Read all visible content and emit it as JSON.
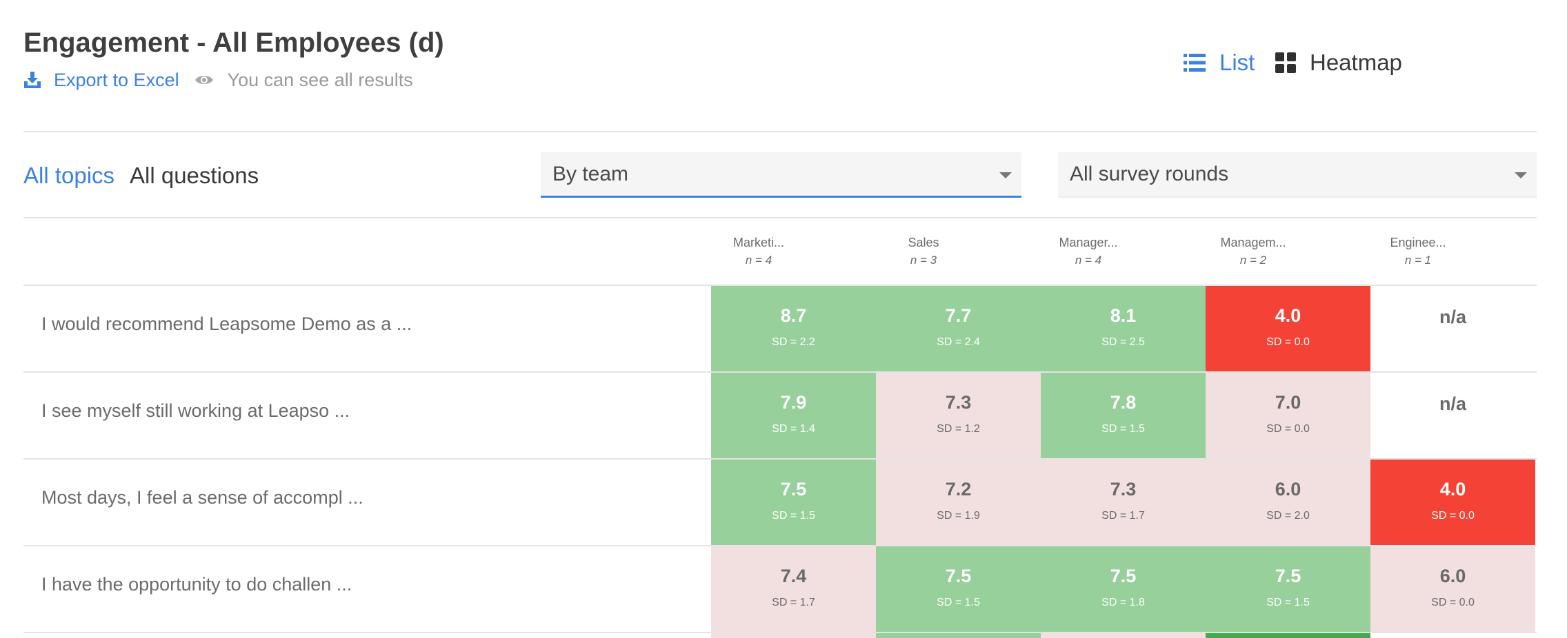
{
  "header": {
    "title": "Engagement - All Employees (d)",
    "export_label": "Export to Excel",
    "visibility_label": "You can see all results"
  },
  "view_toggle": {
    "list_label": "List",
    "heatmap_label": "Heatmap",
    "active": "List"
  },
  "filters": {
    "tabs": [
      {
        "label": "All topics",
        "active": true
      },
      {
        "label": "All questions",
        "active": false
      }
    ],
    "group_by": {
      "selected": "By team"
    },
    "rounds": {
      "selected": "All survey rounds"
    }
  },
  "colors": {
    "accent": "#3b82e0",
    "above_average": "#97d09b",
    "below_average": "#f2dfe0",
    "critical": "#f44336"
  },
  "table": {
    "columns": [
      {
        "name": "Marketi...",
        "n": "n = 4"
      },
      {
        "name": "Sales",
        "n": "n = 3"
      },
      {
        "name": "Manager...",
        "n": "n = 4"
      },
      {
        "name": "Managem...",
        "n": "n = 2"
      },
      {
        "name": "Enginee...",
        "n": "n = 1"
      }
    ],
    "rows": [
      {
        "question": "I would recommend Leapsome Demo as a ...",
        "cells": [
          {
            "mean": "8.7",
            "sd": "SD = 2.2",
            "status": "green"
          },
          {
            "mean": "7.7",
            "sd": "SD = 2.4",
            "status": "green"
          },
          {
            "mean": "8.1",
            "sd": "SD = 2.5",
            "status": "green"
          },
          {
            "mean": "4.0",
            "sd": "SD = 0.0",
            "status": "red"
          },
          {
            "mean": "n/a",
            "sd": "",
            "status": "blank"
          }
        ]
      },
      {
        "question": "I see myself still working at Leapso ...",
        "cells": [
          {
            "mean": "7.9",
            "sd": "SD = 1.4",
            "status": "green"
          },
          {
            "mean": "7.3",
            "sd": "SD = 1.2",
            "status": "pink"
          },
          {
            "mean": "7.8",
            "sd": "SD = 1.5",
            "status": "green"
          },
          {
            "mean": "7.0",
            "sd": "SD = 0.0",
            "status": "pink"
          },
          {
            "mean": "n/a",
            "sd": "",
            "status": "blank"
          }
        ]
      },
      {
        "question": "Most days, I feel a sense of accompl ...",
        "cells": [
          {
            "mean": "7.5",
            "sd": "SD = 1.5",
            "status": "green"
          },
          {
            "mean": "7.2",
            "sd": "SD = 1.9",
            "status": "pink"
          },
          {
            "mean": "7.3",
            "sd": "SD = 1.7",
            "status": "pink"
          },
          {
            "mean": "6.0",
            "sd": "SD = 2.0",
            "status": "pink"
          },
          {
            "mean": "4.0",
            "sd": "SD = 0.0",
            "status": "red"
          }
        ]
      },
      {
        "question": "I have the opportunity to do challen ...",
        "cells": [
          {
            "mean": "7.4",
            "sd": "SD = 1.7",
            "status": "pink"
          },
          {
            "mean": "7.5",
            "sd": "SD = 1.5",
            "status": "green"
          },
          {
            "mean": "7.5",
            "sd": "SD = 1.8",
            "status": "green"
          },
          {
            "mean": "7.5",
            "sd": "SD = 1.5",
            "status": "green"
          },
          {
            "mean": "6.0",
            "sd": "SD = 0.0",
            "status": "pink"
          }
        ]
      }
    ]
  }
}
